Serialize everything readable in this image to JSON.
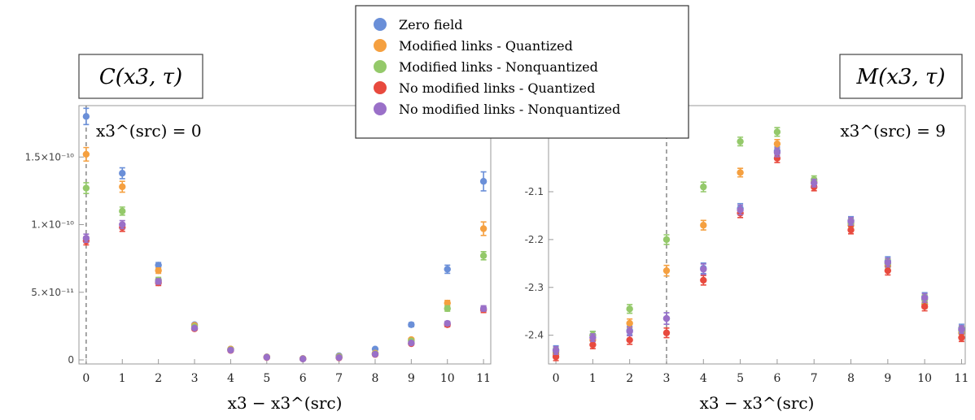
{
  "legend": {
    "placement": "top-center",
    "entries": [
      {
        "label": "Zero field",
        "color": "#6a8fd8"
      },
      {
        "label": "Modified links - Quantized",
        "color": "#f5a040"
      },
      {
        "label": "Modified links - Nonquantized",
        "color": "#94c96a"
      },
      {
        "label": "No modified links - Quantized",
        "color": "#e84a3e"
      },
      {
        "label": "No modified links - Nonquantized",
        "color": "#9a70c8"
      }
    ]
  },
  "chart_data": [
    {
      "type": "scatter",
      "title": "C(x3, τ)",
      "annotation": "x3^(src) = 0",
      "xlabel": "x3 − x3^(src)",
      "ylabel": "",
      "xlim": [
        -0.2,
        11.2
      ],
      "ylim": [
        -3e-12,
        1.88e-10
      ],
      "xticks": [
        0,
        1,
        2,
        3,
        4,
        5,
        6,
        7,
        8,
        9,
        10,
        11
      ],
      "xtick_labels": [
        "0",
        "1",
        "2",
        "3",
        "4",
        "5",
        "6",
        "7",
        "8",
        "9",
        "10",
        "11"
      ],
      "yticks": [
        0,
        5e-11,
        1e-10,
        1.5e-10
      ],
      "ytick_labels": [
        "0",
        "5.×10⁻¹¹",
        "1.×10⁻¹⁰",
        "1.5×10⁻¹⁰"
      ],
      "vline_x": 0,
      "x": [
        0,
        1,
        2,
        3,
        4,
        5,
        6,
        7,
        8,
        9,
        10,
        11
      ],
      "series": [
        {
          "name": "Zero field",
          "color": "#6a8fd8",
          "values": [
            1.8e-10,
            1.38e-10,
            7e-11,
            2.6e-11,
            8e-12,
            2.2e-12,
            1e-12,
            3e-12,
            8e-12,
            2.6e-11,
            6.7e-11,
            1.32e-10
          ],
          "errors": [
            6e-12,
            4e-12,
            2e-12,
            1e-12,
            5e-13,
            3e-13,
            3e-13,
            4e-13,
            6e-13,
            1.5e-12,
            3e-12,
            7e-12
          ]
        },
        {
          "name": "Modified links - Quantized",
          "color": "#f5a040",
          "values": [
            1.52e-10,
            1.28e-10,
            6.6e-11,
            2.55e-11,
            8e-12,
            2.1e-12,
            9e-13,
            2.5e-12,
            5e-12,
            1.5e-11,
            4.2e-11,
            9.7e-11
          ],
          "errors": [
            5e-12,
            4e-12,
            2e-12,
            1e-12,
            5e-13,
            3e-13,
            3e-13,
            4e-13,
            6e-13,
            1e-12,
            2e-12,
            5e-12
          ]
        },
        {
          "name": "Modified links - Nonquantized",
          "color": "#94c96a",
          "values": [
            1.27e-10,
            1.1e-10,
            5.9e-11,
            2.45e-11,
            7.5e-12,
            2e-12,
            8e-13,
            2.2e-12,
            4.5e-12,
            1.4e-11,
            3.8e-11,
            7.7e-11
          ],
          "errors": [
            4e-12,
            3e-12,
            2e-12,
            1e-12,
            5e-13,
            3e-13,
            3e-13,
            4e-13,
            6e-13,
            1e-12,
            2e-12,
            3e-12
          ]
        },
        {
          "name": "No modified links - Quantized",
          "color": "#e84a3e",
          "values": [
            8.8e-11,
            9.8e-11,
            5.7e-11,
            2.3e-11,
            7e-12,
            1.8e-12,
            7e-13,
            1.5e-12,
            4e-12,
            1.2e-11,
            2.6e-11,
            3.7e-11
          ],
          "errors": [
            3e-12,
            3e-12,
            2e-12,
            1e-12,
            5e-13,
            3e-13,
            3e-13,
            4e-13,
            6e-13,
            8e-13,
            1.5e-12,
            2e-12
          ]
        },
        {
          "name": "No modified links - Nonquantized",
          "color": "#9a70c8",
          "values": [
            9e-11,
            1e-10,
            5.8e-11,
            2.35e-11,
            7.2e-12,
            1.9e-12,
            7e-13,
            1.7e-12,
            4.2e-12,
            1.25e-11,
            2.7e-11,
            3.8e-11
          ],
          "errors": [
            3e-12,
            3e-12,
            2e-12,
            1e-12,
            5e-13,
            3e-13,
            3e-13,
            4e-13,
            6e-13,
            8e-13,
            1.5e-12,
            2e-12
          ]
        }
      ]
    },
    {
      "type": "scatter",
      "title": "M(x3, τ)",
      "annotation": "x3^(src) = 9",
      "xlabel": "x3 − x3^(src)",
      "ylabel": "",
      "xlim": [
        -0.2,
        11.1
      ],
      "ylim": [
        -2.46,
        -1.92
      ],
      "xticks": [
        0,
        1,
        2,
        3,
        4,
        5,
        6,
        7,
        8,
        9,
        10,
        11
      ],
      "xtick_labels": [
        "0",
        "1",
        "2",
        "3",
        "4",
        "5",
        "6",
        "7",
        "8",
        "9",
        "10",
        "11"
      ],
      "yticks": [
        -2.4,
        -2.3,
        -2.2,
        -2.1
      ],
      "ytick_labels": [
        "-2.4",
        "-2.3",
        "-2.2",
        "-2.1"
      ],
      "vline_x": 3,
      "x": [
        0,
        1,
        2,
        3,
        4,
        5,
        6,
        7,
        8,
        9,
        10,
        11
      ],
      "series": [
        {
          "name": "Zero field",
          "color": "#6a8fd8",
          "values": [
            -2.43,
            -2.4,
            -2.39,
            -2.365,
            -2.26,
            -2.135,
            -2.015,
            -2.08,
            -2.16,
            -2.245,
            -2.32,
            -2.385
          ],
          "errors": [
            0.008,
            0.008,
            0.009,
            0.012,
            0.011,
            0.01,
            0.009,
            0.008,
            0.008,
            0.009,
            0.009,
            0.008
          ]
        },
        {
          "name": "Modified links - Quantized",
          "color": "#f5a040",
          "values": [
            -2.44,
            -2.41,
            -2.375,
            -2.265,
            -2.17,
            -2.06,
            -2.0,
            -2.08,
            -2.17,
            -2.255,
            -2.335,
            -2.395
          ],
          "errors": [
            0.008,
            0.008,
            0.009,
            0.011,
            0.01,
            0.009,
            0.009,
            0.008,
            0.008,
            0.009,
            0.009,
            0.008
          ]
        },
        {
          "name": "Modified links - Nonquantized",
          "color": "#94c96a",
          "values": [
            -2.435,
            -2.4,
            -2.345,
            -2.2,
            -2.09,
            -1.995,
            -1.975,
            -2.075,
            -2.165,
            -2.25,
            -2.325,
            -2.39
          ],
          "errors": [
            0.008,
            0.008,
            0.009,
            0.01,
            0.01,
            0.009,
            0.009,
            0.008,
            0.008,
            0.009,
            0.009,
            0.008
          ]
        },
        {
          "name": "No modified links - Quantized",
          "color": "#e84a3e",
          "values": [
            -2.445,
            -2.42,
            -2.41,
            -2.395,
            -2.285,
            -2.145,
            -2.03,
            -2.09,
            -2.18,
            -2.265,
            -2.34,
            -2.405
          ],
          "errors": [
            0.008,
            0.008,
            0.009,
            0.01,
            0.01,
            0.009,
            0.009,
            0.008,
            0.008,
            0.009,
            0.009,
            0.008
          ]
        },
        {
          "name": "No modified links - Nonquantized",
          "color": "#9a70c8",
          "values": [
            -2.432,
            -2.405,
            -2.392,
            -2.365,
            -2.262,
            -2.138,
            -2.018,
            -2.082,
            -2.162,
            -2.248,
            -2.322,
            -2.388
          ],
          "errors": [
            0.008,
            0.008,
            0.009,
            0.012,
            0.011,
            0.01,
            0.009,
            0.008,
            0.008,
            0.009,
            0.009,
            0.008
          ]
        }
      ]
    }
  ]
}
